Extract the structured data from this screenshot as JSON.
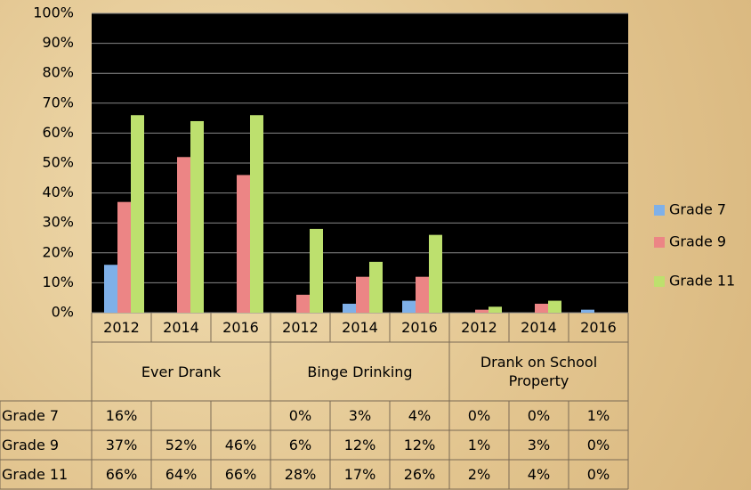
{
  "chart_data": {
    "type": "bar",
    "categories": [
      "2012",
      "2014",
      "2016",
      "2012",
      "2014",
      "2016",
      "2012",
      "2014",
      "2016"
    ],
    "groups": [
      "Ever Drank",
      "Binge Drinking",
      "Drank on School Property"
    ],
    "series": [
      {
        "name": "Grade 7",
        "color": "#7fb0e8",
        "values": [
          16,
          null,
          null,
          0,
          3,
          4,
          0,
          0,
          1
        ],
        "value_labels": [
          "16%",
          null,
          null,
          "0%",
          "3%",
          "4%",
          "0%",
          "0%",
          "1%"
        ]
      },
      {
        "name": "Grade 9",
        "color": "#ec8585",
        "values": [
          37,
          52,
          46,
          6,
          12,
          12,
          1,
          3,
          0
        ],
        "value_labels": [
          "37%",
          "52%",
          "46%",
          "6%",
          "12%",
          "12%",
          "1%",
          "3%",
          "0%"
        ]
      },
      {
        "name": "Grade 11",
        "color": "#bde06e",
        "values": [
          66,
          64,
          66,
          28,
          17,
          26,
          2,
          4,
          0
        ],
        "value_labels": [
          "66%",
          "64%",
          "66%",
          "28%",
          "17%",
          "26%",
          "2%",
          "4%",
          "0%"
        ]
      }
    ],
    "ylim": [
      0,
      100
    ],
    "yticks": [
      {
        "value": 0,
        "label": "0%"
      },
      {
        "value": 10,
        "label": "10%"
      },
      {
        "value": 20,
        "label": "20%"
      },
      {
        "value": 30,
        "label": "30%"
      },
      {
        "value": 40,
        "label": "40%"
      },
      {
        "value": 50,
        "label": "50%"
      },
      {
        "value": 60,
        "label": "60%"
      },
      {
        "value": 70,
        "label": "70%"
      },
      {
        "value": 80,
        "label": "80%"
      },
      {
        "value": 90,
        "label": "90%"
      },
      {
        "value": 100,
        "label": "100%"
      }
    ],
    "grid": true,
    "legend": "right"
  }
}
